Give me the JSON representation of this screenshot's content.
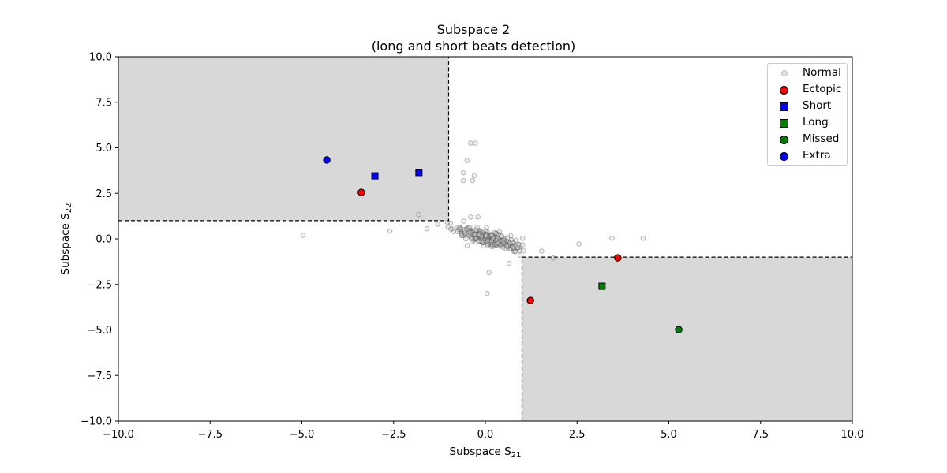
{
  "title_line1": "Subspace 2",
  "title_line2": "(long and short beats detection)",
  "xlabel": "Subspace S",
  "xlabel_sub": "21",
  "ylabel": "Subspace S",
  "ylabel_sub": "22",
  "legend": [
    {
      "label": "Normal",
      "marker": "circle",
      "color": "#d3d3d3"
    },
    {
      "label": "Ectopic",
      "marker": "circle",
      "color": "#ff0000"
    },
    {
      "label": "Short",
      "marker": "square",
      "color": "#0000ff"
    },
    {
      "label": "Long",
      "marker": "square",
      "color": "#008000"
    },
    {
      "label": "Missed",
      "marker": "circle",
      "color": "#008000"
    },
    {
      "label": "Extra",
      "marker": "circle",
      "color": "#0000ff"
    }
  ],
  "chart_data": {
    "type": "scatter",
    "title": "Subspace 2\n(long and short beats detection)",
    "xlabel": "Subspace S_21",
    "ylabel": "Subspace S_22",
    "xlim": [
      -10,
      10
    ],
    "ylim": [
      -10,
      10
    ],
    "xticks": [
      "−10.0",
      "−7.5",
      "−5.0",
      "−2.5",
      "0.0",
      "2.5",
      "5.0",
      "7.5",
      "10.0"
    ],
    "yticks": [
      "−10.0",
      "−7.5",
      "−5.0",
      "−2.5",
      "0.0",
      "2.5",
      "5.0",
      "7.5",
      "10.0"
    ],
    "grid": false,
    "legend_position": "upper right",
    "shaded_regions": [
      {
        "x": [
          -10,
          -1
        ],
        "y": [
          1,
          10
        ],
        "color": "#d8d8d8",
        "border": "dashed"
      },
      {
        "x": [
          1,
          10
        ],
        "y": [
          -10,
          -1
        ],
        "color": "#d8d8d8",
        "border": "dashed"
      }
    ],
    "series": [
      {
        "name": "Normal",
        "note": "dense cluster of ~300 points around origin along negative diagonal plus outliers",
        "points": [
          [
            -4.97,
            0.2
          ],
          [
            -2.6,
            0.42
          ],
          [
            -1.3,
            0.8
          ],
          [
            -0.95,
            0.88
          ],
          [
            -0.4,
            5.26
          ],
          [
            -0.27,
            5.26
          ],
          [
            -0.5,
            4.3
          ],
          [
            -0.6,
            3.63
          ],
          [
            -0.3,
            3.47
          ],
          [
            -0.6,
            3.2
          ],
          [
            -0.35,
            3.2
          ],
          [
            -0.4,
            1.2
          ],
          [
            -0.2,
            1.2
          ],
          [
            2.55,
            -0.28
          ],
          [
            3.45,
            0.03
          ],
          [
            4.3,
            0.03
          ],
          [
            0.1,
            -1.85
          ],
          [
            0.05,
            -3.0
          ],
          [
            0.65,
            -1.35
          ],
          [
            0.95,
            -0.9
          ]
        ]
      },
      {
        "name": "Ectopic",
        "points": [
          [
            -3.38,
            2.55
          ],
          [
            1.23,
            -3.38
          ],
          [
            3.61,
            -1.04
          ]
        ]
      },
      {
        "name": "Short",
        "points": [
          [
            -3.01,
            3.46
          ],
          [
            -1.81,
            3.64
          ]
        ]
      },
      {
        "name": "Long",
        "points": [
          [
            3.18,
            -2.6
          ]
        ]
      },
      {
        "name": "Missed",
        "points": [
          [
            5.27,
            -4.98
          ]
        ]
      },
      {
        "name": "Extra",
        "points": [
          [
            -4.32,
            4.33
          ]
        ]
      }
    ]
  }
}
